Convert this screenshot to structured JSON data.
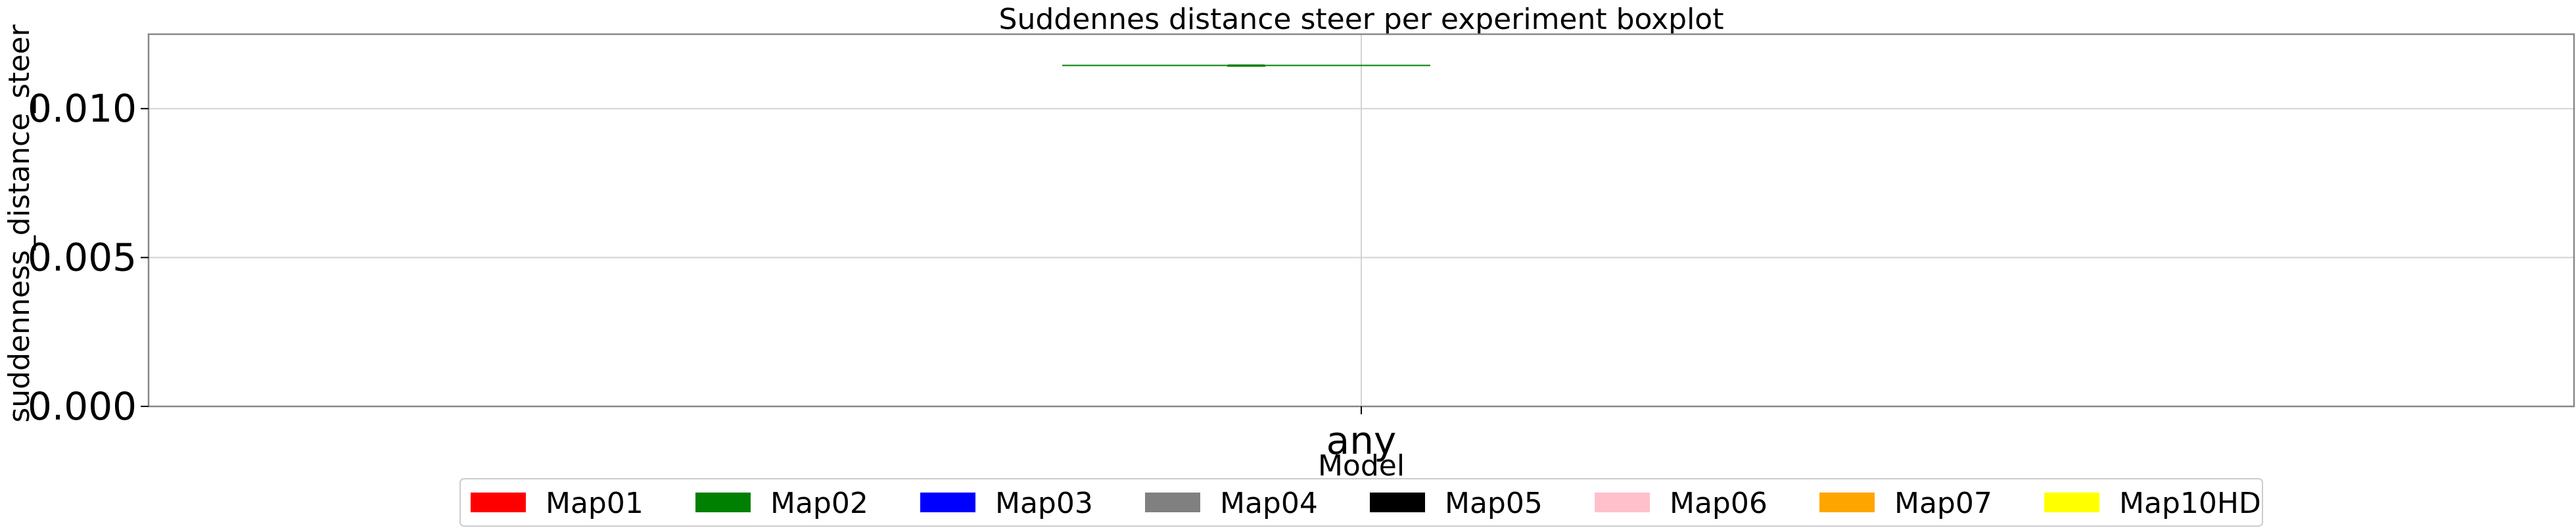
{
  "chart_data": {
    "type": "boxplot",
    "title": "Suddennes distance steer per experiment boxplot",
    "xlabel": "Model",
    "ylabel": "suddenness_distance_steer",
    "categories": [
      "any"
    ],
    "ylim": [
      0.0,
      0.0125
    ],
    "yticks": [
      {
        "value": 0.0,
        "label": "0.000"
      },
      {
        "value": 0.005,
        "label": "0.005"
      },
      {
        "value": 0.01,
        "label": "0.010"
      }
    ],
    "grid": true,
    "legend_position": "bottom-center",
    "series": [
      {
        "name": "Map01",
        "color": "#ff0000",
        "values": []
      },
      {
        "name": "Map02",
        "color": "#008000",
        "values": [
          {
            "category": "any",
            "min": 0.01145,
            "q1": 0.01145,
            "median": 0.01145,
            "q3": 0.01145,
            "max": 0.01145
          }
        ]
      },
      {
        "name": "Map03",
        "color": "#0000ff",
        "values": []
      },
      {
        "name": "Map04",
        "color": "#808080",
        "values": []
      },
      {
        "name": "Map05",
        "color": "#000000",
        "values": []
      },
      {
        "name": "Map06",
        "color": "#ffc0cb",
        "values": []
      },
      {
        "name": "Map07",
        "color": "#ffa500",
        "values": []
      },
      {
        "name": "Map10HD",
        "color": "#ffff00",
        "values": []
      }
    ]
  }
}
